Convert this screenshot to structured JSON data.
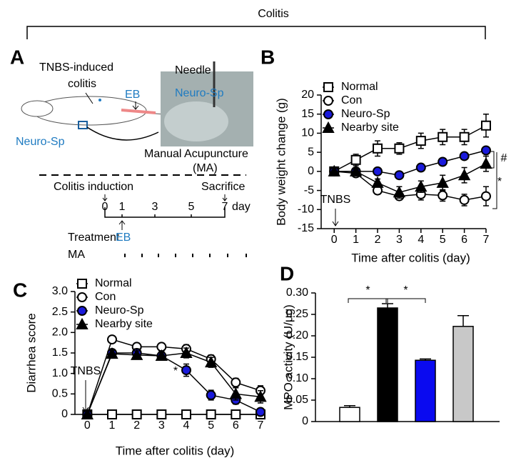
{
  "header": "Colitis",
  "panel_a": {
    "panel": "A",
    "colitis_label": [
      "TNBS-induced",
      "colitis"
    ],
    "eb": "EB",
    "needle": "Needle",
    "site_photo": "Neuro-Sp",
    "site_rat": "Neuro-Sp",
    "ma_label": [
      "Manual Acupuncture",
      "(MA)"
    ],
    "induction": "Colitis induction",
    "sacrifice": "Sacrifice",
    "timeline_days": [
      "0",
      "1",
      "3",
      "5",
      "7"
    ],
    "day_unit": "day",
    "treatment": "Treatment",
    "treatment_eb": "EB",
    "ma": "MA"
  },
  "chart_data": [
    {
      "type": "line",
      "panel": "B",
      "xlabel": "Time after colitis (day)",
      "ylabel": "Body weight change (g)",
      "x": [
        0,
        1,
        2,
        3,
        4,
        5,
        6,
        7
      ],
      "xlim": [
        -0.6,
        7
      ],
      "xticks": [
        0,
        1,
        2,
        3,
        4,
        5,
        6,
        7
      ],
      "ylim": [
        -15,
        20
      ],
      "yticks": [
        -15,
        -10,
        -5,
        0,
        5,
        10,
        15,
        20
      ],
      "legend": "upper left",
      "annotations": [
        "TNBS",
        "#",
        "*"
      ],
      "series": [
        {
          "name": "Normal",
          "color": "#000000",
          "marker": "square",
          "marker_fill": "#ffffff",
          "values": [
            0,
            3,
            6,
            6,
            8,
            9,
            9,
            12
          ],
          "errors": [
            0,
            1.5,
            2,
            1.5,
            2,
            2,
            2,
            3
          ]
        },
        {
          "name": "Con",
          "color": "#000000",
          "marker": "circle",
          "marker_fill": "#ffffff",
          "values": [
            0,
            -0.5,
            -5,
            -6.5,
            -6,
            -6.3,
            -7.5,
            -6.5
          ],
          "errors": [
            0,
            0.5,
            1,
            1,
            1.5,
            1.5,
            1.5,
            2.5
          ]
        },
        {
          "name": "Neuro-Sp",
          "color": "#000000",
          "marker": "circle",
          "marker_fill": "#1a1adb",
          "values": [
            0,
            0,
            0,
            -1,
            1,
            2.5,
            4,
            5.5
          ],
          "errors": [
            0,
            0.5,
            0.5,
            0.5,
            0.5,
            0.5,
            0.5,
            0.8
          ]
        },
        {
          "name": "Nearby site",
          "color": "#000000",
          "marker": "triangle",
          "marker_fill": "#000000",
          "values": [
            0,
            0,
            -3,
            -5.5,
            -4,
            -3,
            -1,
            2
          ],
          "errors": [
            0,
            0.5,
            1,
            1.5,
            1.5,
            2,
            2,
            2
          ]
        }
      ]
    },
    {
      "type": "line",
      "panel": "C",
      "xlabel": "Time after colitis (day)",
      "ylabel": "Diarrhea score",
      "x": [
        0,
        1,
        2,
        3,
        4,
        5,
        6,
        7
      ],
      "xlim": [
        -0.5,
        7
      ],
      "xticks": [
        0,
        1,
        2,
        3,
        4,
        5,
        6,
        7
      ],
      "ylim": [
        0,
        3
      ],
      "yticks": [
        0,
        0.5,
        {
          "value": 1,
          "label": "1.0"
        },
        1.5,
        {
          "value": 2,
          "label": "2.0"
        },
        2.5,
        {
          "value": 3,
          "label": "3.0"
        }
      ],
      "legend": "upper left",
      "annotations": [
        "TNBS",
        "*"
      ],
      "series": [
        {
          "name": "Normal",
          "color": "#000000",
          "marker": "square",
          "marker_fill": "#ffffff",
          "values": [
            0,
            0,
            0,
            0,
            0,
            0,
            0,
            0
          ],
          "errors": [
            0,
            0,
            0,
            0,
            0,
            0,
            0,
            0
          ]
        },
        {
          "name": "Con",
          "color": "#000000",
          "marker": "circle",
          "marker_fill": "#ffffff",
          "values": [
            0,
            1.83,
            1.65,
            1.65,
            1.6,
            1.35,
            0.78,
            0.58
          ],
          "errors": [
            0,
            0.05,
            0.08,
            0.08,
            0.1,
            0.1,
            0.1,
            0.12
          ]
        },
        {
          "name": "Neuro-Sp",
          "color": "#000000",
          "marker": "circle",
          "marker_fill": "#1a1adb",
          "values": [
            0,
            1.5,
            1.5,
            1.43,
            1.08,
            0.47,
            0.35,
            0.06
          ],
          "errors": [
            0,
            0.08,
            0.1,
            0.1,
            0.15,
            0.12,
            0.1,
            0.05
          ]
        },
        {
          "name": "Nearby site",
          "color": "#000000",
          "marker": "triangle",
          "marker_fill": "#000000",
          "values": [
            0,
            1.48,
            1.45,
            1.43,
            1.5,
            1.27,
            0.5,
            0.43
          ],
          "errors": [
            0,
            0.08,
            0.1,
            0.1,
            0.12,
            0.12,
            0.15,
            0.15
          ]
        }
      ]
    },
    {
      "type": "bar",
      "panel": "D",
      "ylabel": "MPO activity (U/μg)",
      "categories": [
        null,
        null,
        null,
        null
      ],
      "values": [
        0.033,
        0.265,
        0.143,
        0.222
      ],
      "errors": [
        0.004,
        0.01,
        0.003,
        0.025
      ],
      "colors": [
        "#ffffff",
        "#000000",
        "#0a0af0",
        "#c8c8c8"
      ],
      "ylim": [
        0,
        0.3
      ],
      "yticks": [
        0,
        0.05,
        {
          "value": 0.1,
          "label": "0.10"
        },
        0.15,
        {
          "value": 0.2,
          "label": "0.20"
        },
        0.25,
        {
          "value": 0.3,
          "label": "0.30"
        }
      ],
      "annotations": [
        "*",
        "*"
      ]
    }
  ]
}
